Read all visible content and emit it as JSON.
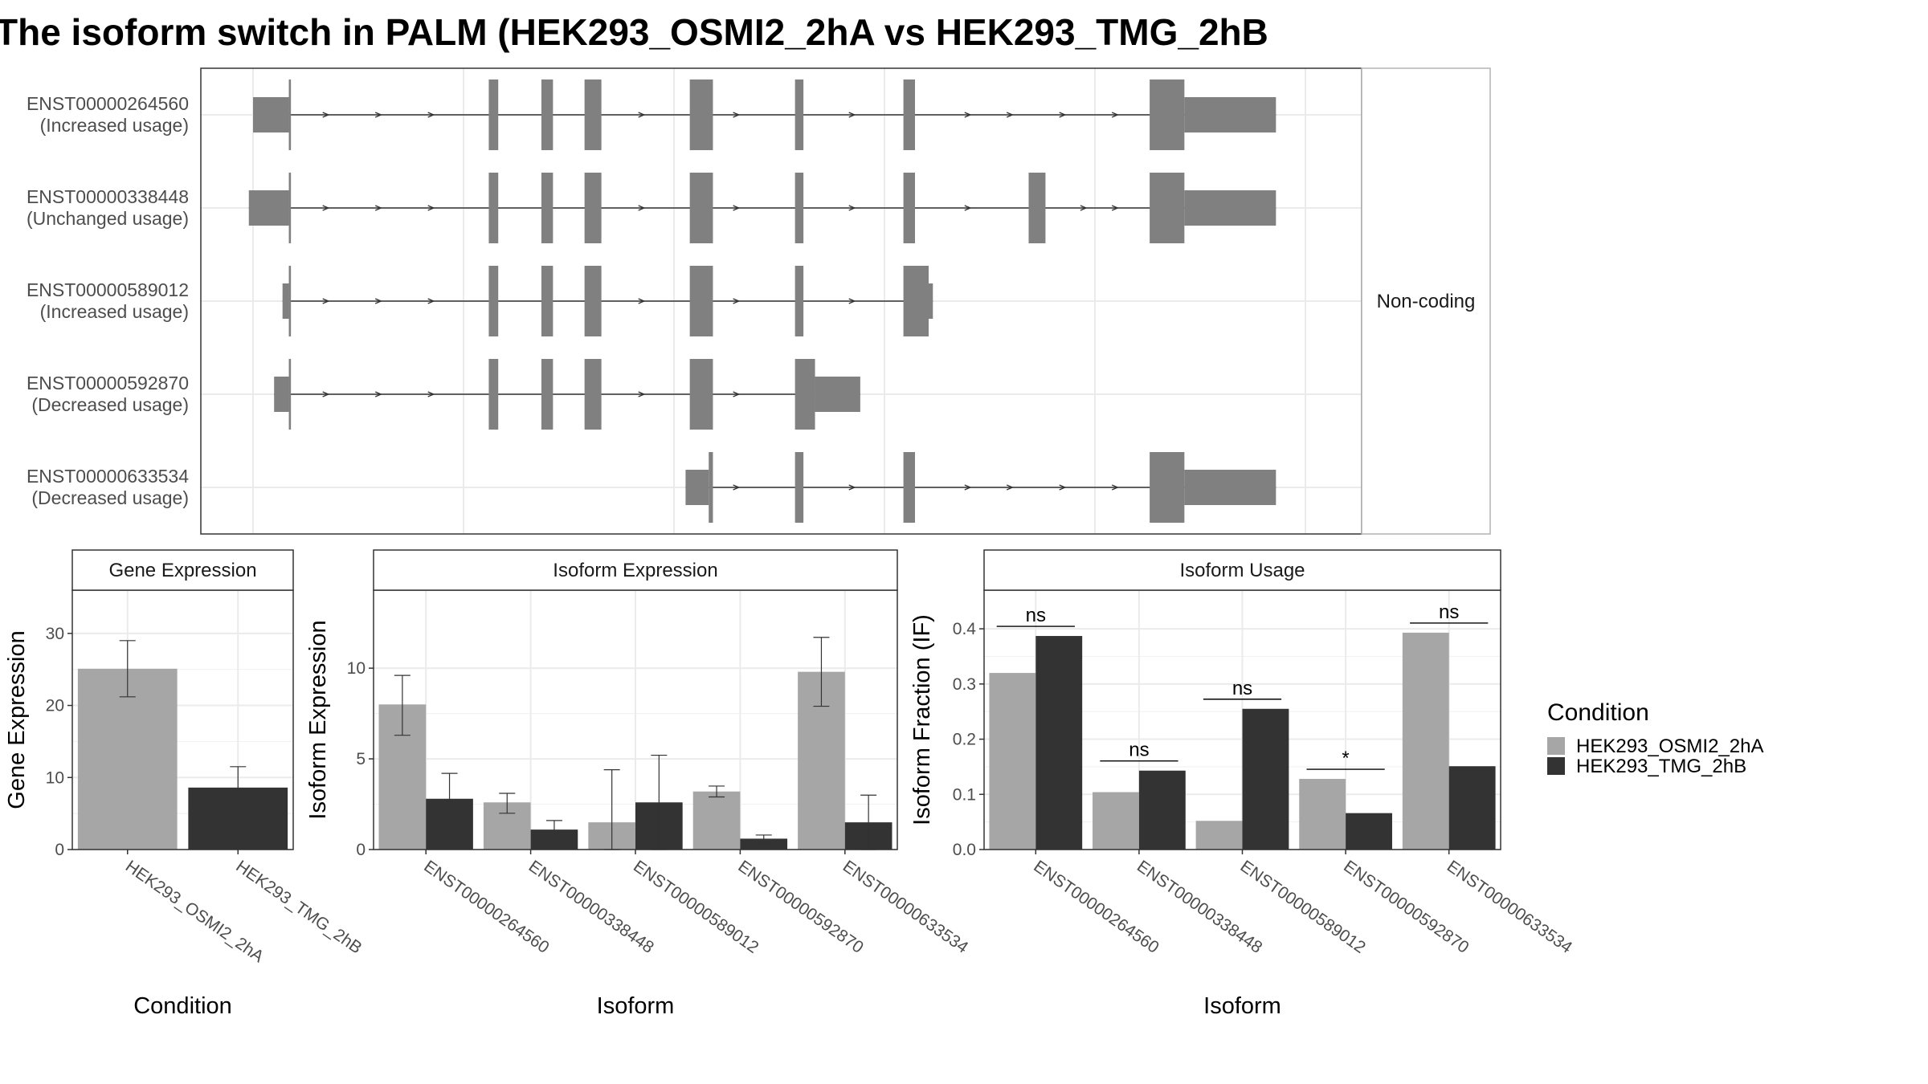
{
  "title": "The isoform switch in PALM (HEK293_OSMI2_2hA vs HEK293_TMG_2hB",
  "colors": {
    "condition_a": "#a6a6a6",
    "condition_b": "#333333",
    "exon": "#808080",
    "grid": "#ebebeb",
    "panel_border": "#333333"
  },
  "transcripts": {
    "strip_label": "Non-coding",
    "coord_range": [
      0,
      1000
    ],
    "items": [
      {
        "id": "ENST00000264560",
        "usage": "(Increased usage)",
        "segments": [
          [
            0,
            34,
            "nc"
          ],
          [
            34,
            36,
            "cds"
          ],
          [
            224,
            233,
            "cds"
          ],
          [
            274,
            285,
            "cds"
          ],
          [
            315,
            331,
            "cds"
          ],
          [
            415,
            437,
            "cds"
          ],
          [
            515,
            523,
            "cds"
          ],
          [
            618,
            629,
            "cds"
          ],
          [
            852,
            885,
            "cds"
          ],
          [
            885,
            972,
            "nc"
          ]
        ],
        "arrows": [
          70,
          120,
          170,
          370,
          460,
          570,
          680,
          720,
          770,
          820
        ]
      },
      {
        "id": "ENST00000338448",
        "usage": "(Unchanged usage)",
        "segments": [
          [
            -4,
            34,
            "nc"
          ],
          [
            34,
            36,
            "cds"
          ],
          [
            224,
            233,
            "cds"
          ],
          [
            274,
            285,
            "cds"
          ],
          [
            315,
            331,
            "cds"
          ],
          [
            415,
            437,
            "cds"
          ],
          [
            515,
            523,
            "cds"
          ],
          [
            618,
            629,
            "cds"
          ],
          [
            737,
            753,
            "cds"
          ],
          [
            852,
            885,
            "cds"
          ],
          [
            885,
            972,
            "nc"
          ]
        ],
        "arrows": [
          70,
          120,
          170,
          370,
          460,
          570,
          680,
          790,
          820
        ]
      },
      {
        "id": "ENST00000589012",
        "usage": "(Increased usage)",
        "segments": [
          [
            28,
            34,
            "nc"
          ],
          [
            34,
            36,
            "cds"
          ],
          [
            224,
            233,
            "cds"
          ],
          [
            274,
            285,
            "cds"
          ],
          [
            315,
            331,
            "cds"
          ],
          [
            415,
            437,
            "cds"
          ],
          [
            515,
            523,
            "cds"
          ],
          [
            618,
            642,
            "cds"
          ],
          [
            642,
            646,
            "nc"
          ]
        ],
        "arrows": [
          70,
          120,
          170,
          370,
          460,
          570
        ]
      },
      {
        "id": "ENST00000592870",
        "usage": "(Decreased usage)",
        "segments": [
          [
            20,
            34,
            "nc"
          ],
          [
            34,
            36,
            "cds"
          ],
          [
            224,
            233,
            "cds"
          ],
          [
            274,
            285,
            "cds"
          ],
          [
            315,
            331,
            "cds"
          ],
          [
            415,
            437,
            "cds"
          ],
          [
            515,
            534,
            "cds"
          ],
          [
            534,
            577,
            "nc"
          ]
        ],
        "arrows": [
          70,
          120,
          170,
          370,
          460
        ]
      },
      {
        "id": "ENST00000633534",
        "usage": "(Decreased usage)",
        "segments": [
          [
            411,
            433,
            "nc"
          ],
          [
            433,
            437,
            "cds"
          ],
          [
            515,
            523,
            "cds"
          ],
          [
            618,
            629,
            "cds"
          ],
          [
            852,
            885,
            "cds"
          ],
          [
            885,
            972,
            "nc"
          ]
        ],
        "arrows": [
          460,
          570,
          680,
          720,
          770,
          820
        ]
      }
    ]
  },
  "chart_data": [
    {
      "type": "bar",
      "title": "Gene Expression",
      "xlabel": "Condition",
      "ylabel": "Gene Expression",
      "ylim": [
        0,
        36
      ],
      "yticks": [
        0,
        10,
        20,
        30
      ],
      "categories": [
        "HEK293_OSMI2_2hA",
        "HEK293_TMG_2hB"
      ],
      "values": [
        25.1,
        8.6
      ],
      "error_low": [
        21.2,
        5.9
      ],
      "error_high": [
        29.0,
        11.5
      ],
      "grid": true
    },
    {
      "type": "bar",
      "title": "Isoform Expression",
      "xlabel": "Isoform",
      "ylabel": "Isoform Expression",
      "ylim": [
        0,
        14.3
      ],
      "yticks": [
        0,
        5,
        10
      ],
      "categories": [
        "ENST00000264560",
        "ENST00000338448",
        "ENST00000589012",
        "ENST00000592870",
        "ENST00000633534"
      ],
      "series": [
        {
          "name": "HEK293_OSMI2_2hA",
          "values": [
            8.0,
            2.6,
            1.5,
            3.2,
            9.8
          ],
          "error_low": [
            6.3,
            2.0,
            0.0,
            2.9,
            7.9
          ],
          "error_high": [
            9.6,
            3.1,
            4.4,
            3.5,
            11.7
          ]
        },
        {
          "name": "HEK293_TMG_2hB",
          "values": [
            2.8,
            1.1,
            2.6,
            0.6,
            1.5
          ],
          "error_low": [
            1.4,
            0.6,
            0.0,
            0.4,
            0.0
          ],
          "error_high": [
            4.2,
            1.6,
            5.2,
            0.8,
            3.0
          ]
        }
      ],
      "grid": true
    },
    {
      "type": "bar",
      "title": "Isoform Usage",
      "xlabel": "Isoform",
      "ylabel": "Isoform Fraction (IF)",
      "ylim": [
        0,
        0.47
      ],
      "yticks": [
        0.0,
        0.1,
        0.2,
        0.3,
        0.4
      ],
      "ytick_labels": [
        "0.0",
        "0.1",
        "0.2",
        "0.3",
        "0.4"
      ],
      "categories": [
        "ENST00000264560",
        "ENST00000338448",
        "ENST00000589012",
        "ENST00000592870",
        "ENST00000633534"
      ],
      "series": [
        {
          "name": "HEK293_OSMI2_2hA",
          "values": [
            0.32,
            0.104,
            0.052,
            0.128,
            0.393
          ]
        },
        {
          "name": "HEK293_TMG_2hB",
          "values": [
            0.387,
            0.143,
            0.255,
            0.066,
            0.151
          ]
        }
      ],
      "significance": [
        "ns",
        "ns",
        "ns",
        "*",
        "ns"
      ],
      "grid": true
    }
  ],
  "legend": {
    "title": "Condition",
    "items": [
      "HEK293_OSMI2_2hA",
      "HEK293_TMG_2hB"
    ]
  }
}
